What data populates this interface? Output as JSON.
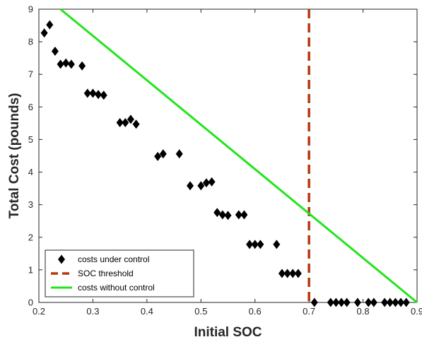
{
  "chart_data": {
    "type": "scatter",
    "xlabel": "Initial SOC",
    "ylabel": "Total Cost (pounds)",
    "xlim": [
      0.2,
      0.9
    ],
    "ylim": [
      0,
      9
    ],
    "xticks": [
      "0.2",
      "0.3",
      "0.4",
      "0.5",
      "0.6",
      "0.7",
      "0.8",
      "0.9"
    ],
    "yticks": [
      "0",
      "1",
      "2",
      "3",
      "4",
      "5",
      "6",
      "7",
      "8",
      "9"
    ],
    "legend_position": "bottom-left",
    "grid": false,
    "series": [
      {
        "name": "costs under control",
        "kind": "scatter",
        "marker": "diamond",
        "color": "#000000",
        "points": [
          [
            0.21,
            8.27
          ],
          [
            0.22,
            8.52
          ],
          [
            0.23,
            7.71
          ],
          [
            0.24,
            7.31
          ],
          [
            0.25,
            7.35
          ],
          [
            0.26,
            7.31
          ],
          [
            0.28,
            7.26
          ],
          [
            0.29,
            6.42
          ],
          [
            0.3,
            6.42
          ],
          [
            0.31,
            6.38
          ],
          [
            0.32,
            6.36
          ],
          [
            0.35,
            5.52
          ],
          [
            0.36,
            5.52
          ],
          [
            0.37,
            5.62
          ],
          [
            0.38,
            5.47
          ],
          [
            0.42,
            4.48
          ],
          [
            0.43,
            4.56
          ],
          [
            0.46,
            4.56
          ],
          [
            0.48,
            3.58
          ],
          [
            0.5,
            3.58
          ],
          [
            0.51,
            3.67
          ],
          [
            0.52,
            3.7
          ],
          [
            0.53,
            2.76
          ],
          [
            0.54,
            2.69
          ],
          [
            0.55,
            2.67
          ],
          [
            0.57,
            2.69
          ],
          [
            0.58,
            2.69
          ],
          [
            0.59,
            1.78
          ],
          [
            0.6,
            1.78
          ],
          [
            0.61,
            1.78
          ],
          [
            0.64,
            1.78
          ],
          [
            0.65,
            0.89
          ],
          [
            0.66,
            0.89
          ],
          [
            0.67,
            0.89
          ],
          [
            0.68,
            0.89
          ],
          [
            0.71,
            0.0
          ],
          [
            0.74,
            0.0
          ],
          [
            0.75,
            0.0
          ],
          [
            0.76,
            0.0
          ],
          [
            0.77,
            0.0
          ],
          [
            0.79,
            0.0
          ],
          [
            0.81,
            0.0
          ],
          [
            0.82,
            0.0
          ],
          [
            0.84,
            0.0
          ],
          [
            0.85,
            0.0
          ],
          [
            0.86,
            0.0
          ],
          [
            0.87,
            0.0
          ],
          [
            0.88,
            0.0
          ]
        ]
      },
      {
        "name": "SOC threshold",
        "kind": "vline",
        "style": "dashed",
        "color": "#b5370e",
        "x": 0.7
      },
      {
        "name": "costs without control",
        "kind": "line",
        "color": "#22e51c",
        "points": [
          [
            0.24,
            9.0
          ],
          [
            0.9,
            0.0
          ]
        ]
      }
    ]
  }
}
